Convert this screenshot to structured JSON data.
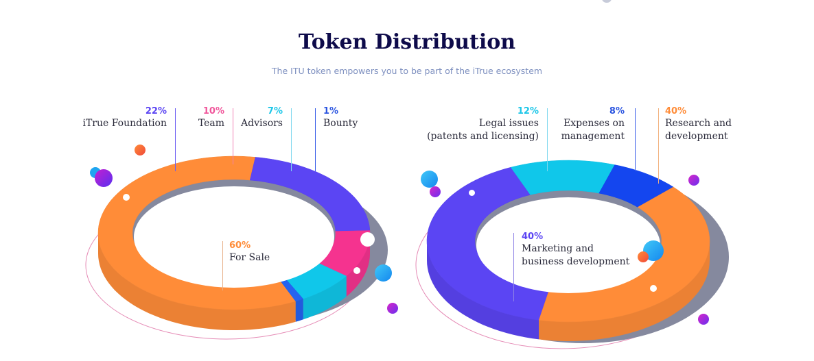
{
  "header": {
    "title": "Token Distribution",
    "subtitle": "The ITU token empowers you to be part of the iTrue ecosystem"
  },
  "chart_data": [
    {
      "type": "pie",
      "variant": "donut-3d",
      "categories": [
        "For Sale",
        "iTrue Foundation",
        "Team",
        "Advisors",
        "Bounty"
      ],
      "values": [
        60,
        22,
        10,
        7,
        1
      ],
      "value_labels": [
        "60%",
        "22%",
        "10%",
        "7%",
        "1%"
      ],
      "colors": [
        "#ff8c38",
        "#5b45f3",
        "#f5338f",
        "#10c7ea",
        "#2563f0"
      ]
    },
    {
      "type": "pie",
      "variant": "donut-3d",
      "categories": [
        "Marketing and business development",
        "Legal issues (patents and licensing)",
        "Expenses on management",
        "Research and development"
      ],
      "label_lines": [
        [
          "Marketing and",
          "business development"
        ],
        [
          "Legal issues",
          "(patents and licensing)"
        ],
        [
          "Expenses on",
          "management"
        ],
        [
          "Research and",
          "development"
        ]
      ],
      "values": [
        40,
        12,
        8,
        40
      ],
      "value_labels": [
        "40%",
        "12%",
        "8%",
        "40%"
      ],
      "colors": [
        "#5b45f3",
        "#10c7ea",
        "#1446ef",
        "#ff8c38"
      ]
    }
  ]
}
